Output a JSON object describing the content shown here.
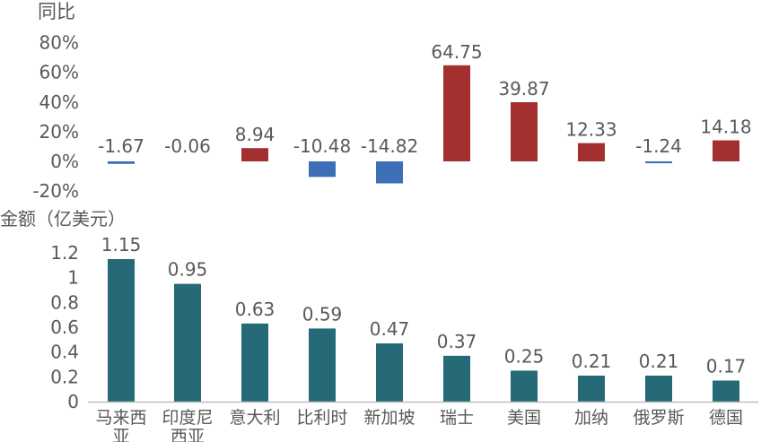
{
  "chart_data": [
    {
      "type": "bar",
      "ylabel": "同比",
      "yticks": [
        "80%",
        "60%",
        "40%",
        "20%",
        "0%",
        "-20%"
      ],
      "ylim": [
        -20,
        80
      ],
      "categories": [
        "马来西亚",
        "印度尼西亚",
        "意大利",
        "比利时",
        "新加坡",
        "瑞士",
        "美国",
        "加纳",
        "俄罗斯",
        "德国"
      ],
      "values": [
        -1.67,
        -0.06,
        8.94,
        -10.48,
        -14.82,
        64.75,
        39.87,
        12.33,
        -1.24,
        14.18
      ],
      "data_labels": [
        "-1.67",
        "-0.06",
        "8.94",
        "-10.48",
        "-14.82",
        "64.75",
        "39.87",
        "12.33",
        "-1.24",
        "14.18"
      ],
      "colors": {
        "positive": "#A3302F",
        "negative": "#3C6FB5"
      },
      "grid": false,
      "legend": "none"
    },
    {
      "type": "bar",
      "ylabel": "金额（亿美元）",
      "yticks": [
        "1.2",
        "1",
        "0.8",
        "0.6",
        "0.4",
        "0.2",
        "0"
      ],
      "ylim": [
        0,
        1.2
      ],
      "categories": [
        "马来西亚",
        "印度尼西亚",
        "意大利",
        "比利时",
        "新加坡",
        "瑞士",
        "美国",
        "加纳",
        "俄罗斯",
        "德国"
      ],
      "category_lines": [
        [
          "马来西",
          "亚"
        ],
        [
          "印度尼",
          "西亚"
        ],
        [
          "意大利"
        ],
        [
          "比利时"
        ],
        [
          "新加坡"
        ],
        [
          "瑞士"
        ],
        [
          "美国"
        ],
        [
          "加纳"
        ],
        [
          "俄罗斯"
        ],
        [
          "德国"
        ]
      ],
      "values": [
        1.15,
        0.95,
        0.63,
        0.59,
        0.47,
        0.37,
        0.25,
        0.21,
        0.21,
        0.17
      ],
      "data_labels": [
        "1.15",
        "0.95",
        "0.63",
        "0.59",
        "0.47",
        "0.37",
        "0.25",
        "0.21",
        "0.21",
        "0.17"
      ],
      "colors": {
        "bar": "#266A78",
        "axis": "#BFBFBF"
      },
      "grid": false,
      "legend": "none"
    }
  ]
}
